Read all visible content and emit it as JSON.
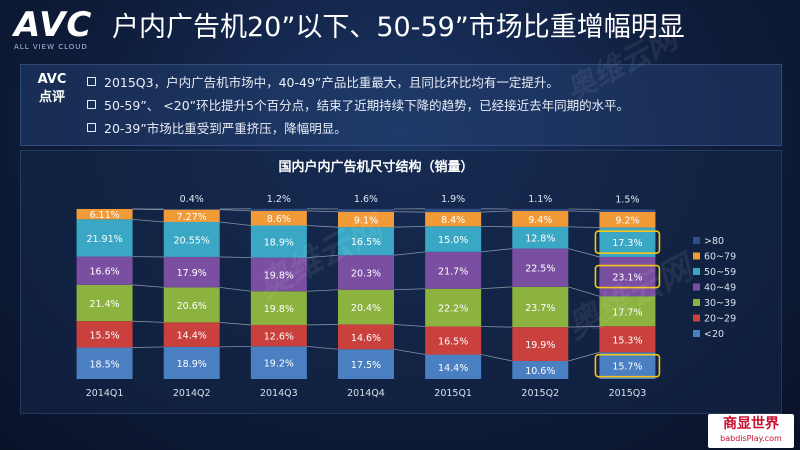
{
  "header": {
    "logo": "AVC",
    "logo_sub": "ALL VIEW CLOUD",
    "title": "户内广告机20”以下、50-59”市场比重增幅明显"
  },
  "comment": {
    "label_line1": "AVC",
    "label_line2": "点评",
    "bullets": [
      "2015Q3，户内广告机市场中，40-49”产品比重最大，且同比环比均有一定提升。",
      "50-59”、 <20”环比提升5个百分点，结束了近期持续下降的趋势，已经接近去年同期的水平。",
      "20-39”市场比重受到严重挤压，降幅明显。"
    ]
  },
  "watermark_text": "奥维云网",
  "footer": {
    "logo_main": "商显世界",
    "logo_sub": "babdisPlay.com"
  },
  "chart_data": {
    "type": "bar",
    "title": "国内户内广告机尺寸结构（销量）",
    "categories": [
      "2014Q1",
      "2014Q2",
      "2014Q3",
      "2014Q4",
      "2015Q1",
      "2015Q2",
      "2015Q3"
    ],
    "ylim": [
      0,
      100
    ],
    "stacked": true,
    "legend_position": "right",
    "series": [
      {
        "name": "<20",
        "color": "#4a7fc1",
        "values": [
          18.5,
          18.9,
          19.2,
          17.5,
          14.4,
          10.6,
          15.7
        ],
        "labels": [
          "18.5%",
          "18.9%",
          "19.2%",
          "17.5%",
          "14.4%",
          "10.6%",
          "15.7%"
        ]
      },
      {
        "name": "20~29",
        "color": "#c9403d",
        "values": [
          15.5,
          14.4,
          12.6,
          14.6,
          16.5,
          19.9,
          15.3
        ],
        "labels": [
          "15.5%",
          "14.4%",
          "12.6%",
          "14.6%",
          "16.5%",
          "19.9%",
          "15.3%"
        ]
      },
      {
        "name": "30~39",
        "color": "#8cb23f",
        "values": [
          21.4,
          20.6,
          19.8,
          20.4,
          22.2,
          23.7,
          17.7
        ],
        "labels": [
          "21.4%",
          "20.6%",
          "19.8%",
          "20.4%",
          "22.2%",
          "23.7%",
          "17.7%"
        ]
      },
      {
        "name": "40~49",
        "color": "#7a4ea0",
        "values": [
          16.6,
          17.9,
          19.8,
          20.3,
          21.7,
          22.5,
          23.1
        ],
        "labels": [
          "16.6%",
          "17.9%",
          "19.8%",
          "20.3%",
          "21.7%",
          "22.5%",
          "23.1%"
        ]
      },
      {
        "name": "50~59",
        "color": "#3aa8c5",
        "values": [
          21.91,
          20.55,
          18.9,
          16.5,
          15.0,
          12.8,
          17.3
        ],
        "labels": [
          "21.91%",
          "20.55%",
          "18.9%",
          "16.5%",
          "15.0%",
          "12.8%",
          "17.3%"
        ]
      },
      {
        "name": "60~79",
        "color": "#f19a38",
        "values": [
          6.11,
          7.27,
          8.6,
          9.1,
          8.4,
          9.4,
          9.2
        ],
        "labels": [
          "6.11%",
          "7.27%",
          "8.6%",
          "9.1%",
          "8.4%",
          "9.4%",
          "9.2%"
        ]
      },
      {
        "name": ">80",
        "color": "#2f4f86",
        "values": [
          0.0,
          0.4,
          1.2,
          1.6,
          1.9,
          1.1,
          1.5
        ],
        "labels": [
          "",
          "0.4%",
          "1.2%",
          "1.6%",
          "1.9%",
          "1.1%",
          "1.5%"
        ]
      }
    ],
    "legend_order": [
      ">80",
      "60~79",
      "50~59",
      "40~49",
      "30~39",
      "20~29",
      "<20"
    ],
    "highlight_boxes": [
      {
        "category": "2015Q3",
        "series": "50~59"
      },
      {
        "category": "2015Q3",
        "series": "40~49"
      },
      {
        "category": "2015Q3",
        "series": "<20"
      }
    ],
    "highlight_color": "#f5c518"
  }
}
